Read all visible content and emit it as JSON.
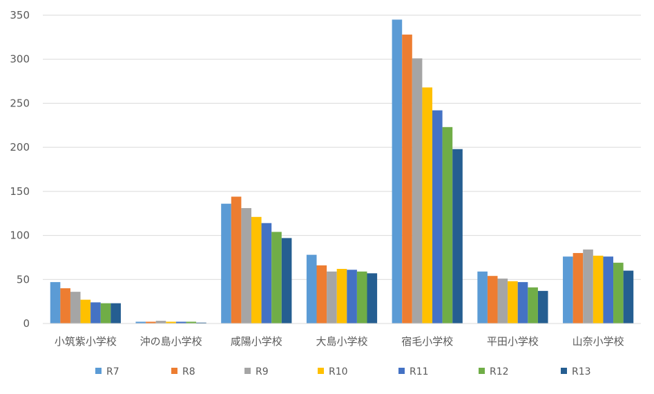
{
  "chart_data": {
    "type": "bar",
    "categories": [
      "小筑紫小学校",
      "沖の島小学校",
      "咸陽小学校",
      "大島小学校",
      "宿毛小学校",
      "平田小学校",
      "山奈小学校"
    ],
    "series": [
      {
        "name": "R7",
        "color": "#5B9BD5",
        "values": [
          47,
          2,
          136,
          78,
          345,
          59,
          76
        ]
      },
      {
        "name": "R8",
        "color": "#ED7D31",
        "values": [
          40,
          2,
          144,
          66,
          328,
          54,
          80
        ]
      },
      {
        "name": "R9",
        "color": "#A5A5A5",
        "values": [
          36,
          3,
          131,
          59,
          301,
          51,
          84
        ]
      },
      {
        "name": "R10",
        "color": "#FFC000",
        "values": [
          27,
          2,
          121,
          62,
          268,
          48,
          77
        ]
      },
      {
        "name": "R11",
        "color": "#4472C4",
        "values": [
          24,
          2,
          114,
          61,
          242,
          47,
          76
        ]
      },
      {
        "name": "R12",
        "color": "#70AD47",
        "values": [
          23,
          2,
          104,
          59,
          223,
          41,
          69
        ]
      },
      {
        "name": "R13",
        "color": "#255E91",
        "values": [
          23,
          1,
          97,
          57,
          198,
          37,
          60
        ]
      }
    ],
    "ylim": [
      0,
      350
    ],
    "yticks": [
      0,
      50,
      100,
      150,
      200,
      250,
      300,
      350
    ],
    "grid": true,
    "legend_position": "bottom"
  }
}
